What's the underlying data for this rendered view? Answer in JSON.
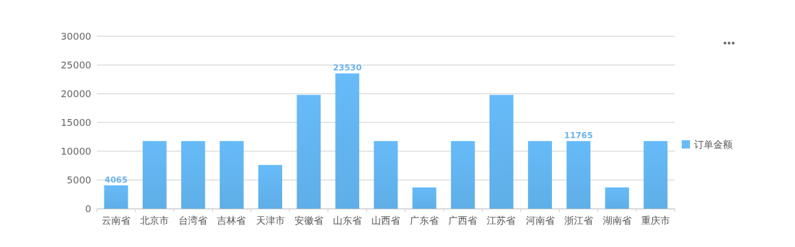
{
  "chart_data": {
    "type": "bar",
    "categories": [
      "云南省",
      "北京市",
      "台湾省",
      "吉林省",
      "天津市",
      "安徽省",
      "山东省",
      "山西省",
      "广东省",
      "广西省",
      "江苏省",
      "河南省",
      "浙江省",
      "湖南省",
      "重庆市"
    ],
    "series": [
      {
        "name": "订单金额",
        "color": "#66bbf8",
        "values": [
          4065,
          11765,
          11765,
          11765,
          7600,
          19800,
          23530,
          11765,
          3700,
          11765,
          19800,
          11765,
          11765,
          3700,
          11765
        ],
        "value_labels": [
          "4065",
          null,
          null,
          null,
          null,
          null,
          "23530",
          null,
          null,
          null,
          null,
          null,
          "11765",
          null,
          null
        ]
      }
    ],
    "ylim": [
      0,
      30000
    ],
    "yticks": [
      0,
      5000,
      10000,
      15000,
      20000,
      25000,
      30000
    ],
    "grid": "y",
    "legend": "right"
  }
}
